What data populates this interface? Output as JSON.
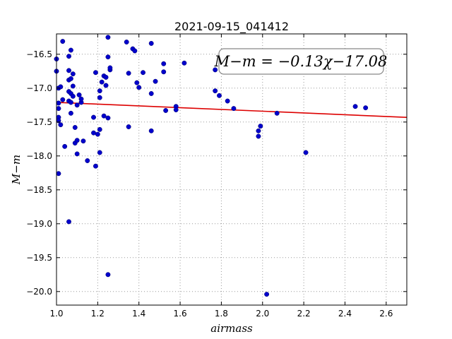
{
  "colors": {
    "points": "#0000cc",
    "fit_line": "#dd0000",
    "grid": "#999999"
  },
  "chart_data": {
    "type": "scatter",
    "title": "2021-09-15_041412",
    "xlabel": "airmass",
    "ylabel": "M−m",
    "xlim": [
      1.0,
      2.7
    ],
    "ylim": [
      -20.2,
      -16.2
    ],
    "y_inverted": true,
    "grid": true,
    "xticks": [
      "1.0",
      "1.2",
      "1.4",
      "1.6",
      "1.8",
      "2.0",
      "2.2",
      "2.4",
      "2.6"
    ],
    "yticks": [
      "−16.5",
      "−17.0",
      "−17.5",
      "−18.0",
      "−18.5",
      "−19.0",
      "−19.5",
      "−20.0"
    ],
    "fit": {
      "label": "M−m = −0.13χ−17.08",
      "slope": -0.13,
      "intercept": -17.08,
      "x_range": [
        1.0,
        2.7
      ]
    },
    "points": [
      [
        1.0,
        -16.75
      ],
      [
        1.0,
        -16.57
      ],
      [
        1.01,
        -17.0
      ],
      [
        1.01,
        -17.22
      ],
      [
        1.01,
        -17.3
      ],
      [
        1.01,
        -17.43
      ],
      [
        1.01,
        -17.48
      ],
      [
        1.02,
        -17.54
      ],
      [
        1.01,
        -18.26
      ],
      [
        1.02,
        -16.98
      ],
      [
        1.03,
        -16.31
      ],
      [
        1.03,
        -17.17
      ],
      [
        1.04,
        -17.86
      ],
      [
        1.06,
        -16.53
      ],
      [
        1.06,
        -16.74
      ],
      [
        1.06,
        -16.88
      ],
      [
        1.06,
        -17.05
      ],
      [
        1.06,
        -17.19
      ],
      [
        1.06,
        -18.97
      ],
      [
        1.07,
        -16.86
      ],
      [
        1.07,
        -17.08
      ],
      [
        1.07,
        -17.21
      ],
      [
        1.07,
        -17.37
      ],
      [
        1.07,
        -16.44
      ],
      [
        1.08,
        -16.79
      ],
      [
        1.08,
        -16.97
      ],
      [
        1.08,
        -17.12
      ],
      [
        1.09,
        -17.58
      ],
      [
        1.09,
        -17.81
      ],
      [
        1.1,
        -17.25
      ],
      [
        1.1,
        -17.77
      ],
      [
        1.1,
        -17.97
      ],
      [
        1.11,
        -17.1
      ],
      [
        1.12,
        -17.21
      ],
      [
        1.12,
        -17.16
      ],
      [
        1.13,
        -17.78
      ],
      [
        1.15,
        -18.07
      ],
      [
        1.18,
        -17.43
      ],
      [
        1.18,
        -17.66
      ],
      [
        1.19,
        -18.15
      ],
      [
        1.19,
        -16.77
      ],
      [
        1.2,
        -17.68
      ],
      [
        1.21,
        -17.61
      ],
      [
        1.21,
        -17.14
      ],
      [
        1.21,
        -17.04
      ],
      [
        1.22,
        -16.91
      ],
      [
        1.21,
        -17.95
      ],
      [
        1.23,
        -16.82
      ],
      [
        1.23,
        -17.41
      ],
      [
        1.24,
        -16.84
      ],
      [
        1.24,
        -16.96
      ],
      [
        1.25,
        -16.25
      ],
      [
        1.25,
        -16.54
      ],
      [
        1.25,
        -17.44
      ],
      [
        1.26,
        -16.73
      ],
      [
        1.26,
        -16.7
      ],
      [
        1.25,
        -19.75
      ],
      [
        1.34,
        -16.32
      ],
      [
        1.35,
        -16.78
      ],
      [
        1.35,
        -17.57
      ],
      [
        1.37,
        -16.42
      ],
      [
        1.38,
        -16.45
      ],
      [
        1.39,
        -16.92
      ],
      [
        1.4,
        -16.99
      ],
      [
        1.42,
        -16.77
      ],
      [
        1.46,
        -16.34
      ],
      [
        1.46,
        -17.08
      ],
      [
        1.46,
        -17.63
      ],
      [
        1.48,
        -16.9
      ],
      [
        1.52,
        -16.64
      ],
      [
        1.52,
        -16.76
      ],
      [
        1.53,
        -17.33
      ],
      [
        1.58,
        -17.27
      ],
      [
        1.58,
        -17.32
      ],
      [
        1.62,
        -16.63
      ],
      [
        1.77,
        -16.73
      ],
      [
        1.77,
        -17.04
      ],
      [
        1.79,
        -17.11
      ],
      [
        1.83,
        -17.19
      ],
      [
        1.86,
        -17.3
      ],
      [
        1.98,
        -17.63
      ],
      [
        1.98,
        -17.71
      ],
      [
        1.99,
        -17.56
      ],
      [
        2.02,
        -20.04
      ],
      [
        2.07,
        -17.37
      ],
      [
        2.21,
        -17.95
      ],
      [
        2.45,
        -17.27
      ],
      [
        2.5,
        -17.29
      ]
    ]
  }
}
